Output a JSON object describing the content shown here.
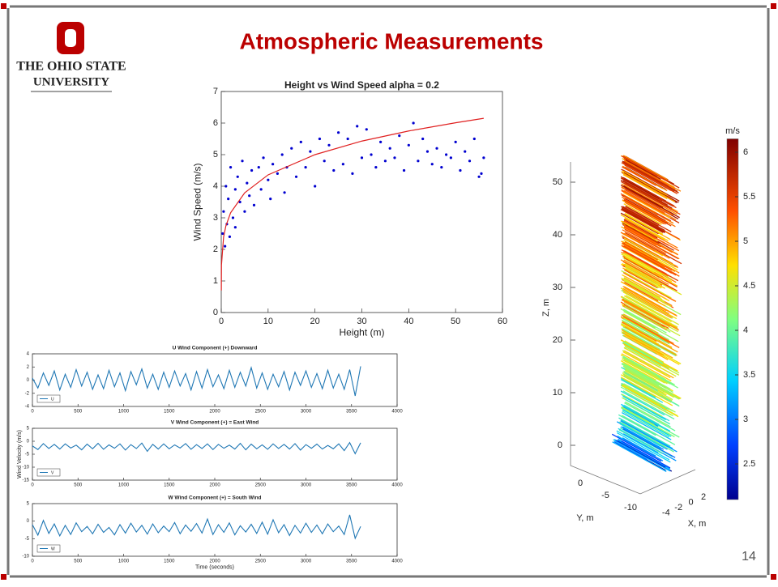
{
  "slide": {
    "title": "Atmospheric Measurements",
    "logo_line1": "THE OHIO STATE",
    "logo_line2": "UNIVERSITY",
    "page_number": "14"
  },
  "chart_data": [
    {
      "type": "scatter",
      "title": "Height vs Wind Speed alpha = 0.2",
      "xlabel": "Height (m)",
      "ylabel": "Wind Speed (m/s)",
      "xlim": [
        0,
        60
      ],
      "xticks": [
        0,
        10,
        20,
        30,
        40,
        50,
        60
      ],
      "ylim": [
        0,
        7
      ],
      "yticks": [
        0,
        1,
        2,
        3,
        4,
        5,
        6,
        7
      ],
      "series": [
        {
          "type": "scatter",
          "color": "#0000d0",
          "x": [
            0.3,
            0.5,
            0.8,
            1,
            1.2,
            1.5,
            1.8,
            2,
            2.5,
            3,
            3,
            3.5,
            4,
            4.5,
            5,
            5.5,
            6,
            6.5,
            7,
            8,
            8.5,
            9,
            10,
            10.5,
            11,
            12,
            13,
            13.5,
            14,
            15,
            16,
            17,
            18,
            19,
            20,
            21,
            22,
            23,
            24,
            25,
            26,
            27,
            28,
            29,
            30,
            31,
            32,
            33,
            34,
            35,
            36,
            37,
            38,
            39,
            40,
            41,
            42,
            43,
            44,
            45,
            46,
            47,
            48,
            49,
            50,
            51,
            52,
            53,
            54,
            55,
            56,
            55.5
          ],
          "values": [
            2.5,
            3.2,
            2.1,
            4.0,
            2.8,
            3.6,
            2.4,
            4.6,
            3.0,
            3.9,
            2.7,
            4.3,
            3.5,
            4.8,
            3.2,
            4.1,
            3.7,
            4.5,
            3.4,
            4.6,
            3.9,
            4.9,
            4.2,
            3.6,
            4.7,
            4.4,
            5.0,
            3.8,
            4.6,
            5.2,
            4.3,
            5.4,
            4.6,
            5.1,
            4.0,
            5.5,
            4.8,
            5.3,
            4.5,
            5.7,
            4.7,
            5.5,
            4.4,
            5.9,
            4.9,
            5.8,
            5.0,
            4.6,
            5.4,
            4.8,
            5.2,
            4.9,
            5.6,
            4.5,
            5.3,
            6.0,
            4.8,
            5.5,
            5.1,
            4.7,
            5.2,
            4.6,
            5.0,
            4.9,
            5.4,
            4.5,
            5.1,
            4.8,
            5.5,
            4.3,
            4.9,
            4.4
          ]
        },
        {
          "type": "line",
          "color": "#e02020",
          "x": [
            0.02,
            0.05,
            0.5,
            1,
            2,
            5,
            10,
            20,
            30,
            40,
            50,
            56
          ],
          "values": [
            0.7,
            1.51,
            2.39,
            2.75,
            3.16,
            3.79,
            4.36,
            5.0,
            5.43,
            5.75,
            6.01,
            6.15
          ]
        }
      ]
    },
    {
      "type": "line",
      "title": "U Wind Component (+) Downward",
      "xlim": [
        0,
        4000
      ],
      "xticks": [
        0,
        500,
        1000,
        1500,
        2000,
        2500,
        3000,
        3500,
        4000
      ],
      "ylim": [
        -4,
        4
      ],
      "yticks": [
        -4,
        -2,
        0,
        2,
        4
      ],
      "x": [
        0,
        60,
        120,
        180,
        240,
        300,
        360,
        420,
        480,
        540,
        600,
        660,
        720,
        780,
        840,
        900,
        960,
        1020,
        1080,
        1140,
        1200,
        1260,
        1320,
        1380,
        1440,
        1500,
        1560,
        1620,
        1680,
        1740,
        1800,
        1860,
        1920,
        1980,
        2040,
        2100,
        2160,
        2220,
        2280,
        2340,
        2400,
        2460,
        2520,
        2580,
        2640,
        2700,
        2760,
        2820,
        2880,
        2940,
        3000,
        3060,
        3120,
        3180,
        3240,
        3300,
        3360,
        3420,
        3480,
        3540,
        3600
      ],
      "series": [
        {
          "name": "U",
          "color": "#1f77b4",
          "values": [
            0.3,
            -1.2,
            1.1,
            -0.8,
            1.4,
            -1.5,
            0.9,
            -1.1,
            1.6,
            -0.9,
            1.2,
            -1.4,
            0.8,
            -1.3,
            1.5,
            -1.0,
            1.1,
            -1.6,
            1.3,
            -0.7,
            1.7,
            -1.2,
            0.9,
            -1.4,
            1.2,
            -1.1,
            1.4,
            -0.9,
            1.0,
            -1.5,
            1.3,
            -1.2,
            1.6,
            -1.0,
            0.8,
            -1.3,
            1.5,
            -1.1,
            1.2,
            -0.9,
            1.9,
            -1.2,
            1.1,
            -1.4,
            0.9,
            -1.0,
            1.3,
            -1.5,
            1.2,
            -0.8,
            1.4,
            -1.1,
            1.0,
            -1.3,
            1.5,
            -1.2,
            0.9,
            -1.4,
            1.6,
            -2.4,
            2.1
          ]
        }
      ]
    },
    {
      "type": "line",
      "title": "V Wind Component (+) = East Wind",
      "ylabel": "Wind Velocity (m/s)",
      "xlim": [
        0,
        4000
      ],
      "xticks": [
        0,
        500,
        1000,
        1500,
        2000,
        2500,
        3000,
        3500,
        4000
      ],
      "ylim": [
        -15,
        5
      ],
      "yticks": [
        -15,
        -10,
        -5,
        0,
        5
      ],
      "x": [
        0,
        60,
        120,
        180,
        240,
        300,
        360,
        420,
        480,
        540,
        600,
        660,
        720,
        780,
        840,
        900,
        960,
        1020,
        1080,
        1140,
        1200,
        1260,
        1320,
        1380,
        1440,
        1500,
        1560,
        1620,
        1680,
        1740,
        1800,
        1860,
        1920,
        1980,
        2040,
        2100,
        2160,
        2220,
        2280,
        2340,
        2400,
        2460,
        2520,
        2580,
        2640,
        2700,
        2760,
        2820,
        2880,
        2940,
        3000,
        3060,
        3120,
        3180,
        3240,
        3300,
        3360,
        3420,
        3480,
        3540,
        3600
      ],
      "series": [
        {
          "name": "V",
          "color": "#1f77b4",
          "values": [
            -1.8,
            -3.2,
            -0.9,
            -2.8,
            -1.2,
            -3.0,
            -1.0,
            -2.6,
            -1.5,
            -3.3,
            -1.1,
            -2.9,
            -0.8,
            -3.1,
            -1.4,
            -2.7,
            -1.0,
            -3.4,
            -1.3,
            -2.8,
            -0.7,
            -3.9,
            -1.2,
            -3.0,
            -1.0,
            -2.9,
            -1.4,
            -2.6,
            -0.9,
            -3.1,
            -1.3,
            -2.8,
            -1.0,
            -3.2,
            -1.2,
            -2.7,
            -1.5,
            -3.0,
            -0.8,
            -3.3,
            -1.1,
            -2.9,
            -1.4,
            -3.1,
            -1.0,
            -2.8,
            -1.2,
            -3.0,
            -0.9,
            -3.4,
            -1.3,
            -2.7,
            -1.1,
            -3.0,
            -1.6,
            -2.9,
            -1.0,
            -3.6,
            -0.5,
            -4.8,
            -0.6
          ]
        }
      ]
    },
    {
      "type": "line",
      "title": "W Wind Component (+) = South Wind",
      "xlabel": "Time (seconds)",
      "xlim": [
        0,
        4000
      ],
      "xticks": [
        0,
        500,
        1000,
        1500,
        2000,
        2500,
        3000,
        3500,
        4000
      ],
      "ylim": [
        -10,
        5
      ],
      "yticks": [
        -10,
        -5,
        0,
        5
      ],
      "x": [
        0,
        60,
        120,
        180,
        240,
        300,
        360,
        420,
        480,
        540,
        600,
        660,
        720,
        780,
        840,
        900,
        960,
        1020,
        1080,
        1140,
        1200,
        1260,
        1320,
        1380,
        1440,
        1500,
        1560,
        1620,
        1680,
        1740,
        1800,
        1860,
        1920,
        1980,
        2040,
        2100,
        2160,
        2220,
        2280,
        2340,
        2400,
        2460,
        2520,
        2580,
        2640,
        2700,
        2760,
        2820,
        2880,
        2940,
        3000,
        3060,
        3120,
        3180,
        3240,
        3300,
        3360,
        3420,
        3480,
        3540,
        3600
      ],
      "series": [
        {
          "name": "W",
          "color": "#1f77b4",
          "values": [
            -1.0,
            -4.0,
            0.2,
            -3.5,
            -0.8,
            -4.2,
            -1.2,
            -3.8,
            -0.5,
            -3.0,
            -1.5,
            -3.6,
            -0.9,
            -3.2,
            -1.8,
            -3.9,
            -1.0,
            -3.4,
            -0.6,
            -3.1,
            -1.2,
            -3.7,
            -0.8,
            -3.3,
            -1.4,
            -3.0,
            -0.4,
            -3.6,
            -1.1,
            -2.9,
            -0.7,
            -3.4,
            0.6,
            -3.8,
            -1.0,
            -3.2,
            -0.5,
            -3.9,
            -1.3,
            -3.1,
            -0.9,
            -3.5,
            -0.3,
            -3.7,
            0.4,
            -3.3,
            -1.0,
            -4.1,
            -1.2,
            -3.4,
            -0.6,
            -3.2,
            -1.1,
            -3.6,
            -0.8,
            -3.0,
            -1.4,
            -3.8,
            1.8,
            -4.9,
            -1.5
          ]
        }
      ]
    },
    {
      "type": "quiver3d",
      "colorbar_label": "m/s",
      "clim": [
        2.1,
        6.15
      ],
      "cticks": [
        2.5,
        3,
        3.5,
        4,
        4.5,
        5,
        5.5,
        6
      ],
      "zlabel": "Z, m",
      "ylabel": "Y, m",
      "xlabel": "X, m",
      "zlim": [
        0,
        55
      ],
      "zticks": [
        0,
        10,
        20,
        30,
        40,
        50
      ],
      "yticks": [
        0,
        -5,
        -10
      ],
      "xticks": [
        -4,
        -2,
        0,
        2
      ]
    }
  ]
}
